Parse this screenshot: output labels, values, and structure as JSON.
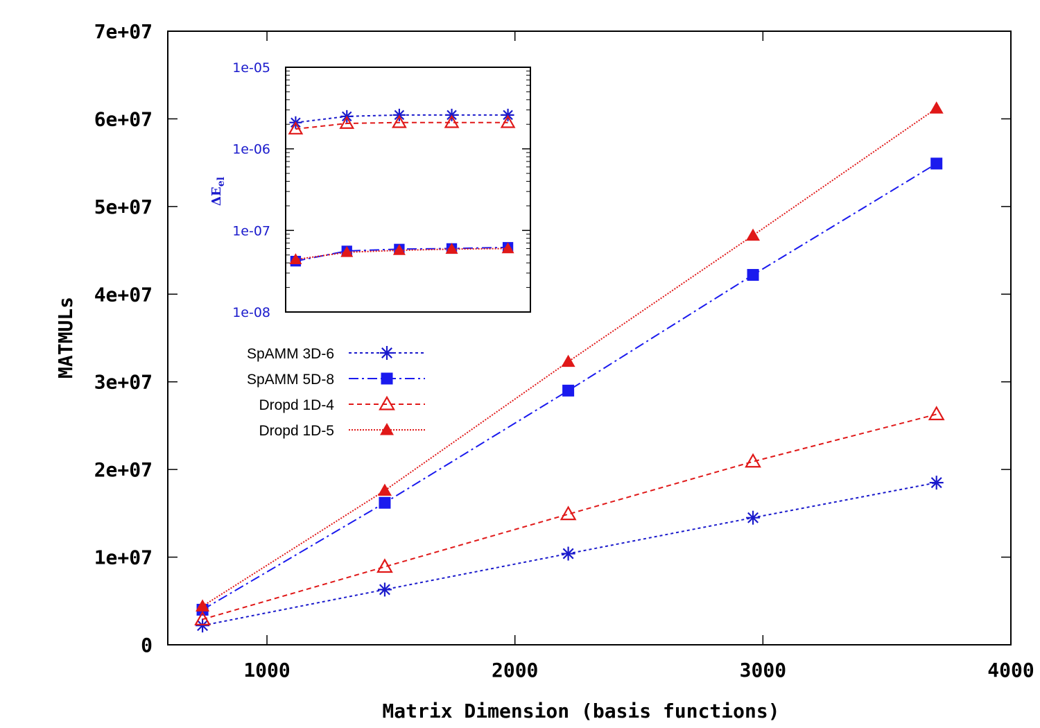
{
  "chart_data": [
    {
      "type": "line",
      "xlabel": "Matrix Dimension (basis functions)",
      "ylabel": "MATMULs",
      "xlim": [
        600,
        4000
      ],
      "ylim": [
        0,
        70000000
      ],
      "x_ticks": [
        1000,
        2000,
        3000,
        4000
      ],
      "x_tick_labels": [
        "1000",
        "2000",
        "3000",
        "4000"
      ],
      "y_ticks": [
        0,
        10000000,
        20000000,
        30000000,
        40000000,
        50000000,
        60000000,
        70000000
      ],
      "y_tick_labels": [
        "0",
        "1e+07",
        "2e+07",
        "3e+07",
        "4e+07",
        "5e+07",
        "6e+07",
        "7e+07"
      ],
      "x": [
        740,
        1475,
        2215,
        2960,
        3700
      ],
      "series": [
        {
          "name": "SpAMM 3D-6",
          "values": [
            2200000,
            6300000,
            10400000,
            14500000,
            18500000
          ],
          "color": "#1a1acc",
          "marker": "star",
          "dash": "4,4"
        },
        {
          "name": "SpAMM 5D-8",
          "values": [
            4000000,
            16200000,
            29000000,
            42200000,
            54900000
          ],
          "color": "#1a1aee",
          "marker": "square",
          "dash": "14,5,3,5"
        },
        {
          "name": "Dropd 1D-4",
          "values": [
            2900000,
            8900000,
            14900000,
            20900000,
            26300000
          ],
          "color": "#e01818",
          "marker": "triangle-open",
          "dash": "7,5"
        },
        {
          "name": "Dropd 1D-5",
          "values": [
            4400000,
            17600000,
            32300000,
            46700000,
            61200000
          ],
          "color": "#e01818",
          "marker": "triangle",
          "dash": "2,2"
        }
      ],
      "legend": "upper-left, below inset"
    },
    {
      "type": "line",
      "inset": true,
      "ylabel": "ΔE",
      "ylabel_subscript": "el",
      "yscale": "log",
      "ylim": [
        1e-08,
        1e-05
      ],
      "xlim": [
        1080,
        2060
      ],
      "y_ticks": [
        1e-08,
        1e-07,
        1e-06,
        1e-05
      ],
      "y_tick_labels": [
        "1e-08",
        "1e-07",
        "1e-06",
        "1e-05"
      ],
      "x": [
        1120,
        1325,
        1535,
        1745,
        1970
      ],
      "series": [
        {
          "name": "SpAMM 3D-6",
          "values": [
            2.1e-06,
            2.5e-06,
            2.6e-06,
            2.6e-06,
            2.6e-06
          ],
          "color": "#1a1acc",
          "marker": "star",
          "dash": "4,4"
        },
        {
          "name": "SpAMM 5D-8",
          "values": [
            4.2e-08,
            5.6e-08,
            5.9e-08,
            6e-08,
            6.2e-08
          ],
          "color": "#1a1aee",
          "marker": "square",
          "dash": "14,5,3,5"
        },
        {
          "name": "Dropd 1D-4",
          "values": [
            1.75e-06,
            2.05e-06,
            2.1e-06,
            2.1e-06,
            2.1e-06
          ],
          "color": "#e01818",
          "marker": "triangle-open",
          "dash": "7,5"
        },
        {
          "name": "Dropd 1D-5",
          "values": [
            4.4e-08,
            5.4e-08,
            5.7e-08,
            5.9e-08,
            6e-08
          ],
          "color": "#e01818",
          "marker": "triangle",
          "dash": "2,2"
        }
      ]
    }
  ]
}
